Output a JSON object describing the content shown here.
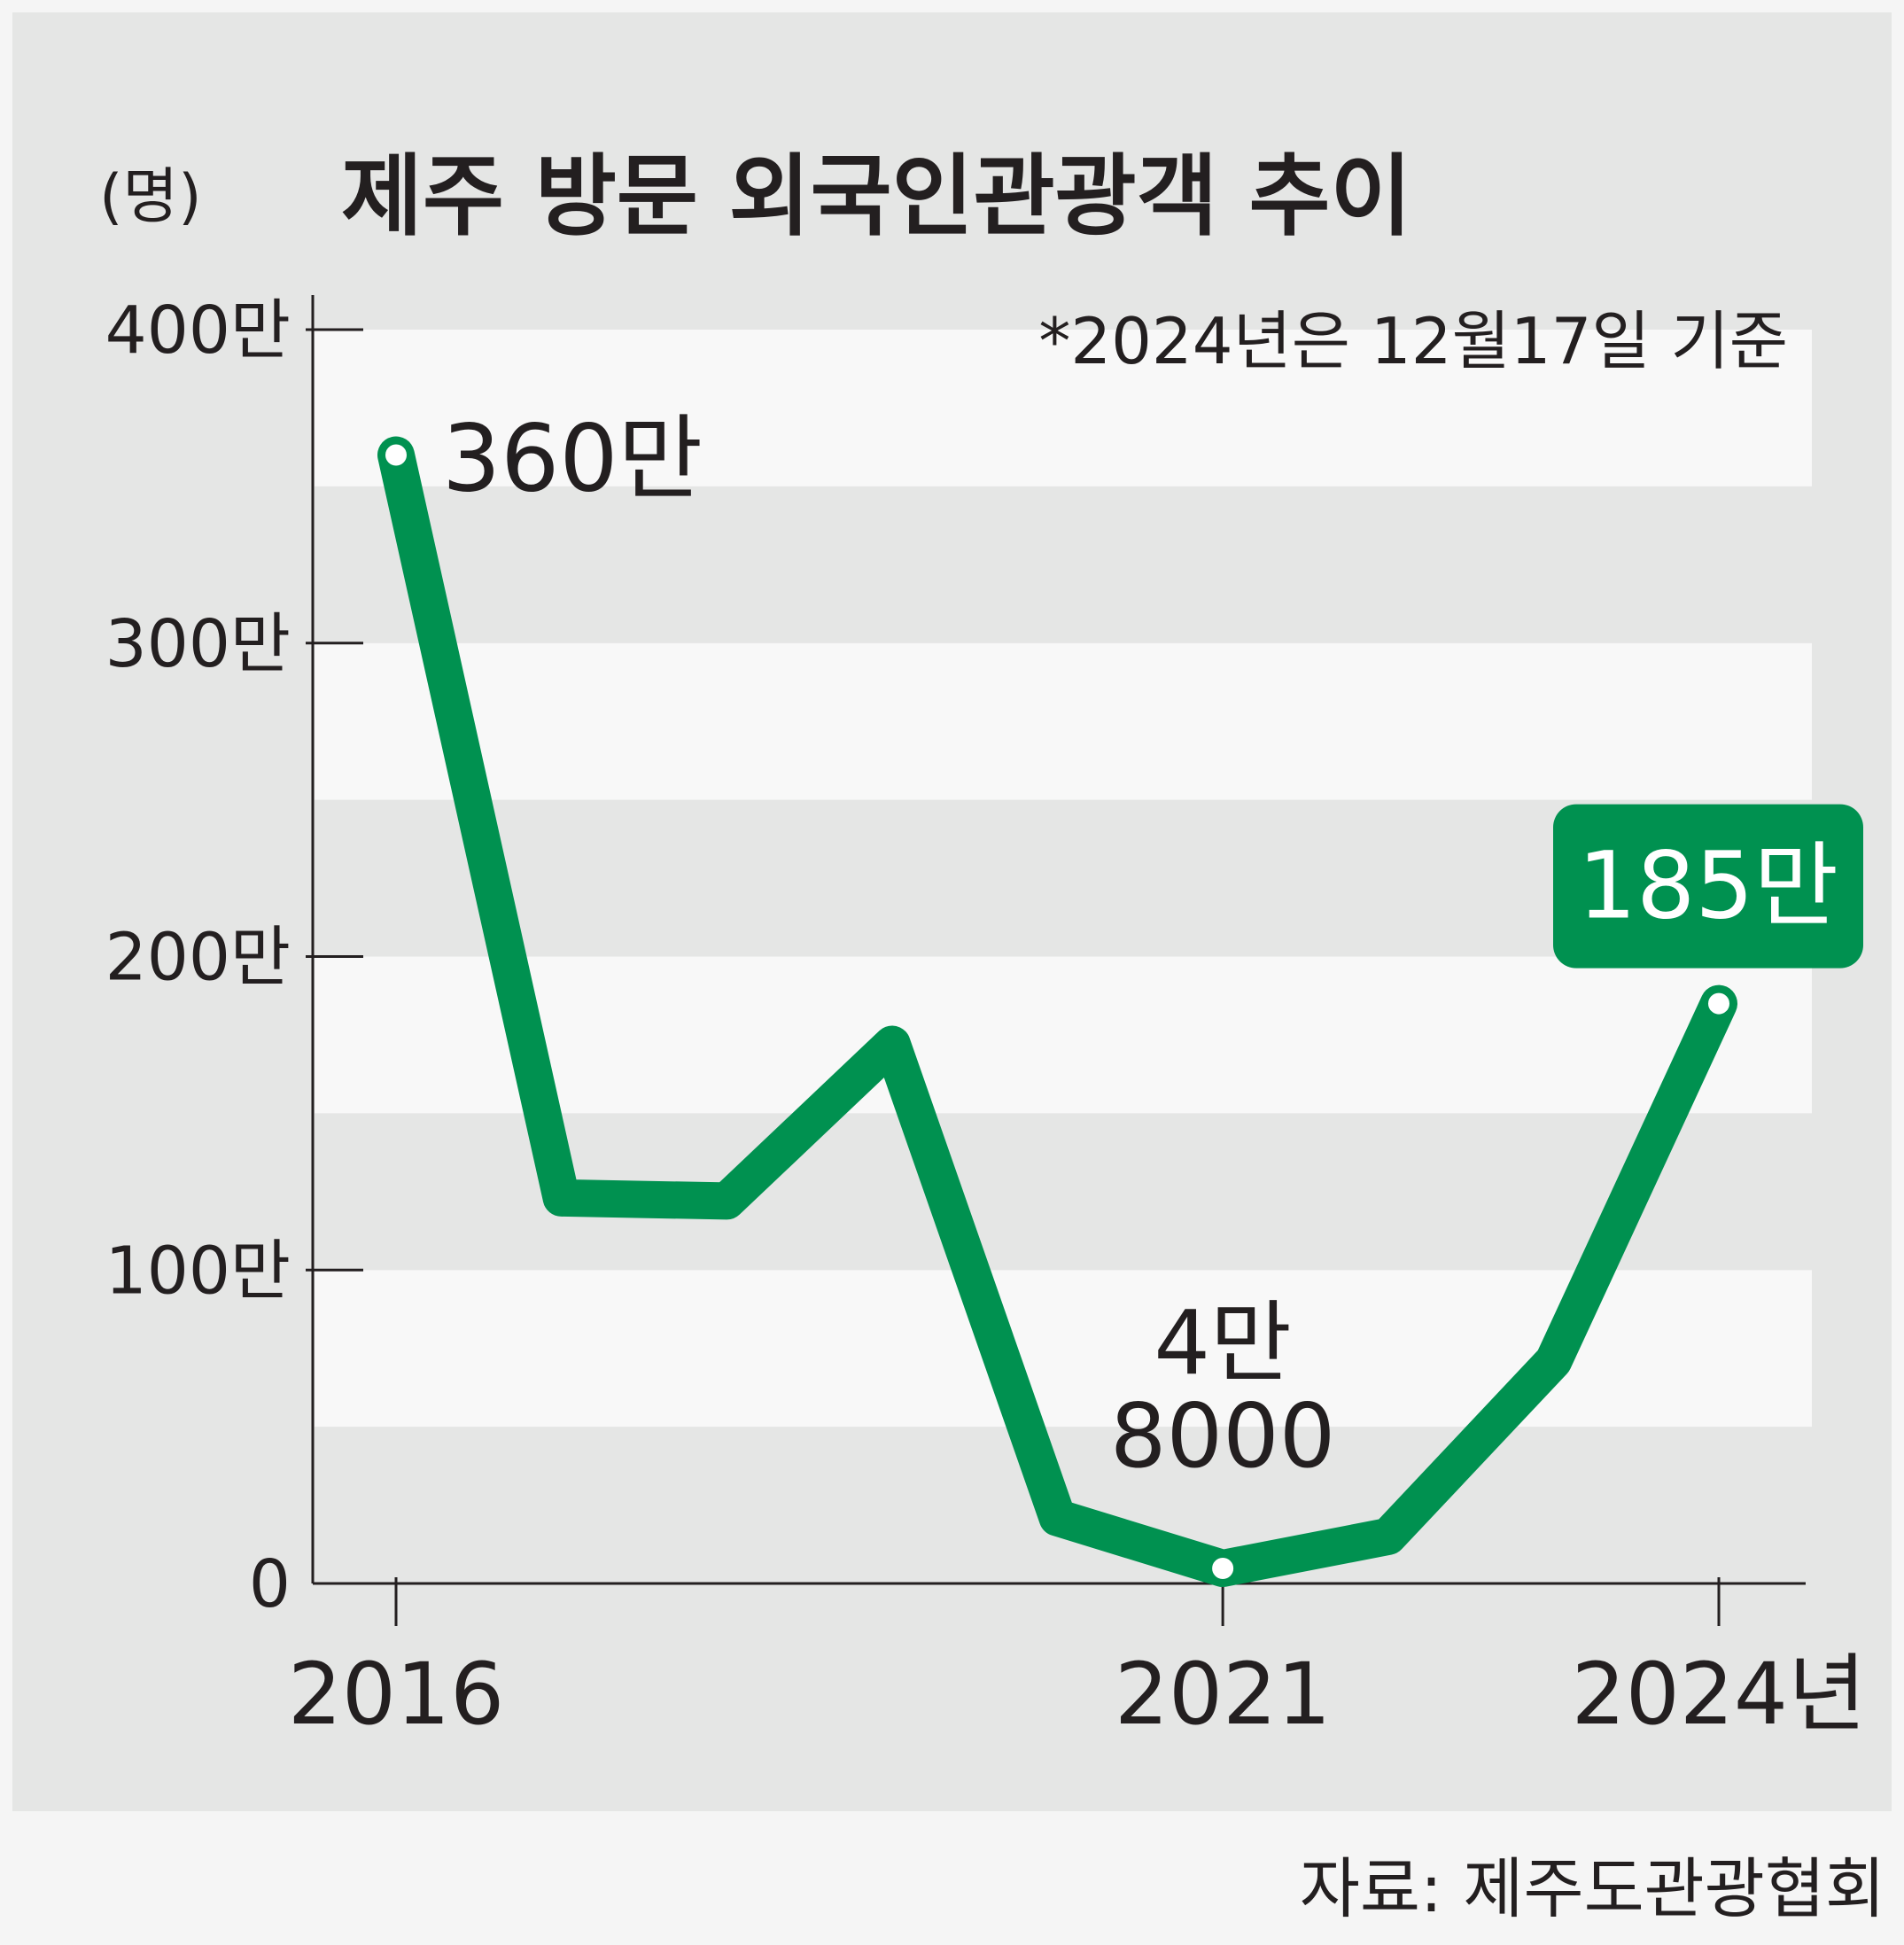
{
  "chart_data": {
    "type": "line",
    "title": "제주 방문 외국인관광객 추이",
    "unit_label": "(명)",
    "note": "*2024년은 12월17일 기준",
    "source": "자료: 제주도관광협회",
    "x": [
      2016,
      2017,
      2018,
      2019,
      2020,
      2021,
      2022,
      2023,
      2024
    ],
    "x_tick_labels": [
      {
        "x": 2016,
        "label": "2016"
      },
      {
        "x": 2021,
        "label": "2021"
      },
      {
        "x": 2024,
        "label": "2024년"
      }
    ],
    "y_ticks": [
      {
        "value": 0,
        "label": "0"
      },
      {
        "value": 1000000,
        "label": "100만"
      },
      {
        "value": 2000000,
        "label": "200만"
      },
      {
        "value": 3000000,
        "label": "300만"
      },
      {
        "value": 4000000,
        "label": "400만"
      }
    ],
    "ylim": [
      0,
      4000000
    ],
    "series": [
      {
        "values": [
          3600000,
          1230000,
          1220000,
          1720000,
          210000,
          48000,
          150000,
          710000,
          1850000
        ]
      }
    ],
    "data_labels": [
      {
        "x": 2016,
        "lines": [
          "360만"
        ],
        "style": "plain"
      },
      {
        "x": 2021,
        "lines": [
          "4만",
          "8000"
        ],
        "style": "plain"
      },
      {
        "x": 2024,
        "lines": [
          "185만"
        ],
        "style": "boxed"
      }
    ],
    "colors": {
      "line": "#009150",
      "band_dark": "#e5e6e5",
      "band_light": "#f8f8f8",
      "text": "#231f20"
    },
    "grid": "horizontal alternating bands"
  }
}
